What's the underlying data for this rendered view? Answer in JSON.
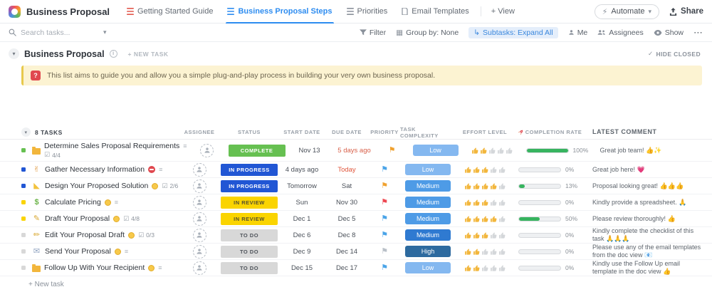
{
  "colors": {
    "accent": "#2d8cf0",
    "status_complete": "#66c051",
    "status_in_progress": "#2156d4",
    "status_in_review": "#fad400",
    "status_todo": "#d8d8d8",
    "progress_green": "#37b45f",
    "banner_bg": "#fcf3d2"
  },
  "header": {
    "title": "Business Proposal",
    "tabs": [
      {
        "label": "Getting Started Guide",
        "icon": "list-icon",
        "icon_color": "#e2574c",
        "active": false
      },
      {
        "label": "Business Proposal Steps",
        "icon": "list-icon",
        "icon_color": "#2d8cf0",
        "active": true
      },
      {
        "label": "Priorities",
        "icon": "list-icon",
        "icon_color": "#8a919b",
        "active": false
      },
      {
        "label": "Email Templates",
        "icon": "doc-icon",
        "icon_color": "#8a919b",
        "active": false
      }
    ],
    "add_view_label": "+ View",
    "automate_label": "Automate",
    "share_label": "Share"
  },
  "toolbar": {
    "search_placeholder": "Search tasks...",
    "filter_label": "Filter",
    "group_by_label": "Group by: None",
    "subtasks_label": "Subtasks: Expand All",
    "me_label": "Me",
    "assignees_label": "Assignees",
    "show_label": "Show",
    "more_label": "⋯"
  },
  "list": {
    "title": "Business Proposal",
    "new_task_label": "+ NEW TASK",
    "hide_closed_label": "HIDE CLOSED",
    "banner_text": "This list aims to guide you and allow you a simple plug-and-play process in building your very own business proposal.",
    "task_count_label": "8 TASKS",
    "add_task_label": "+ New task",
    "columns": [
      "ASSIGNEE",
      "STATUS",
      "START DATE",
      "DUE DATE",
      "PRIORITY",
      "TASK COMPLEXITY",
      "EFFORT LEVEL",
      "COMPLETION RATE",
      "LATEST COMMENT"
    ]
  },
  "tasks": [
    {
      "name": "Determine Sales Proposal Requirements",
      "icon": "folder-icon",
      "bullet_color": "#66c051",
      "doc_icon": true,
      "marker": null,
      "checklist": "4/4",
      "checklist_below": true,
      "status": {
        "label": "COMPLETE",
        "bg": "#66c051",
        "fg": "#ffffff"
      },
      "start": "Nov 13",
      "due": "5 days ago",
      "due_color": "#d8604a",
      "priority_color": "#f0a12f",
      "complexity": {
        "label": "Low",
        "bg": "#84b8f0"
      },
      "effort_filled": 2,
      "effort_total": 5,
      "completion_pct": 100,
      "completion_label": "100%",
      "comment": "Great job team! 👍✨"
    },
    {
      "name": "Gather Necessary Information",
      "icon": "handshake-icon",
      "bullet_color": "#2156d4",
      "doc_icon": true,
      "marker": "blocked",
      "checklist": null,
      "checklist_below": false,
      "status": {
        "label": "IN PROGRESS",
        "bg": "#2156d4",
        "fg": "#ffffff"
      },
      "start": "4 days ago",
      "due": "Today",
      "due_color": "#e0563c",
      "priority_color": "#4aa4e8",
      "complexity": {
        "label": "Low",
        "bg": "#84b8f0"
      },
      "effort_filled": 3,
      "effort_total": 5,
      "completion_pct": 0,
      "completion_label": "0%",
      "comment": "Great job here! 💗"
    },
    {
      "name": "Design Your Proposed Solution",
      "icon": "ruler-icon",
      "bullet_color": "#2156d4",
      "doc_icon": false,
      "marker": "badge",
      "checklist": "2/6",
      "checklist_below": false,
      "status": {
        "label": "IN PROGRESS",
        "bg": "#2156d4",
        "fg": "#ffffff"
      },
      "start": "Tomorrow",
      "due": "Sat",
      "due_color": null,
      "priority_color": "#f0a12f",
      "complexity": {
        "label": "Medium",
        "bg": "#4e9be6"
      },
      "effort_filled": 4,
      "effort_total": 5,
      "completion_pct": 13,
      "completion_label": "13%",
      "comment": "Proposal looking great! 👍👍👍"
    },
    {
      "name": "Calculate Pricing",
      "icon": "dollar-icon",
      "bullet_color": "#fad400",
      "doc_icon": true,
      "marker": "badge",
      "checklist": null,
      "checklist_below": false,
      "status": {
        "label": "IN REVIEW",
        "bg": "#fad400",
        "fg": "#56512f"
      },
      "start": "Sun",
      "due": "Nov 30",
      "due_color": null,
      "priority_color": "#ee4852",
      "complexity": {
        "label": "Medium",
        "bg": "#4e9be6"
      },
      "effort_filled": 3,
      "effort_total": 5,
      "completion_pct": 0,
      "completion_label": "0%",
      "comment": "Kindly provide a spreadsheet. 🙏"
    },
    {
      "name": "Draft Your Proposal",
      "icon": "memo-icon",
      "bullet_color": "#fad400",
      "doc_icon": false,
      "marker": "badge",
      "checklist": "4/8",
      "checklist_below": false,
      "status": {
        "label": "IN REVIEW",
        "bg": "#fad400",
        "fg": "#56512f"
      },
      "start": "Dec 1",
      "due": "Dec 5",
      "due_color": null,
      "priority_color": "#4aa4e8",
      "complexity": {
        "label": "Medium",
        "bg": "#4e9be6"
      },
      "effort_filled": 4,
      "effort_total": 5,
      "completion_pct": 50,
      "completion_label": "50%",
      "comment": "Please review thoroughly! 👍"
    },
    {
      "name": "Edit Your Proposal Draft",
      "icon": "pencil-icon",
      "bullet_color": "#d8d8d8",
      "doc_icon": false,
      "marker": "badge",
      "checklist": "0/3",
      "checklist_below": false,
      "status": {
        "label": "TO DO",
        "bg": "#d8d8d8",
        "fg": "#4f545b"
      },
      "start": "Dec 6",
      "due": "Dec 8",
      "due_color": null,
      "priority_color": "#4aa4e8",
      "complexity": {
        "label": "Medium",
        "bg": "#2f7ad1"
      },
      "effort_filled": 3,
      "effort_total": 5,
      "completion_pct": 0,
      "completion_label": "0%",
      "comment": "Kindly complete the checklist of this task 🙏🙏🙏"
    },
    {
      "name": "Send Your Proposal",
      "icon": "envelope-icon",
      "bullet_color": "#d8d8d8",
      "doc_icon": true,
      "marker": "badge",
      "checklist": null,
      "checklist_below": false,
      "status": {
        "label": "TO DO",
        "bg": "#d8d8d8",
        "fg": "#4f545b"
      },
      "start": "Dec 9",
      "due": "Dec 14",
      "due_color": null,
      "priority_color": "#b9c0c8",
      "complexity": {
        "label": "High",
        "bg": "#2d6a9f"
      },
      "effort_filled": 2,
      "effort_total": 5,
      "completion_pct": 0,
      "completion_label": "0%",
      "comment": "Please use any of the email templates from the doc view 📧"
    },
    {
      "name": "Follow Up With Your Recipient",
      "icon": "folder-icon",
      "bullet_color": "#d8d8d8",
      "doc_icon": true,
      "marker": "badge",
      "checklist": null,
      "checklist_below": false,
      "status": {
        "label": "TO DO",
        "bg": "#d8d8d8",
        "fg": "#4f545b"
      },
      "start": "Dec 15",
      "due": "Dec 17",
      "due_color": null,
      "priority_color": "#4aa4e8",
      "complexity": {
        "label": "Low",
        "bg": "#84b8f0"
      },
      "effort_filled": 2,
      "effort_total": 5,
      "completion_pct": 0,
      "completion_label": "0%",
      "comment": "Kindly use the Follow Up email template in the doc view 👍"
    }
  ]
}
